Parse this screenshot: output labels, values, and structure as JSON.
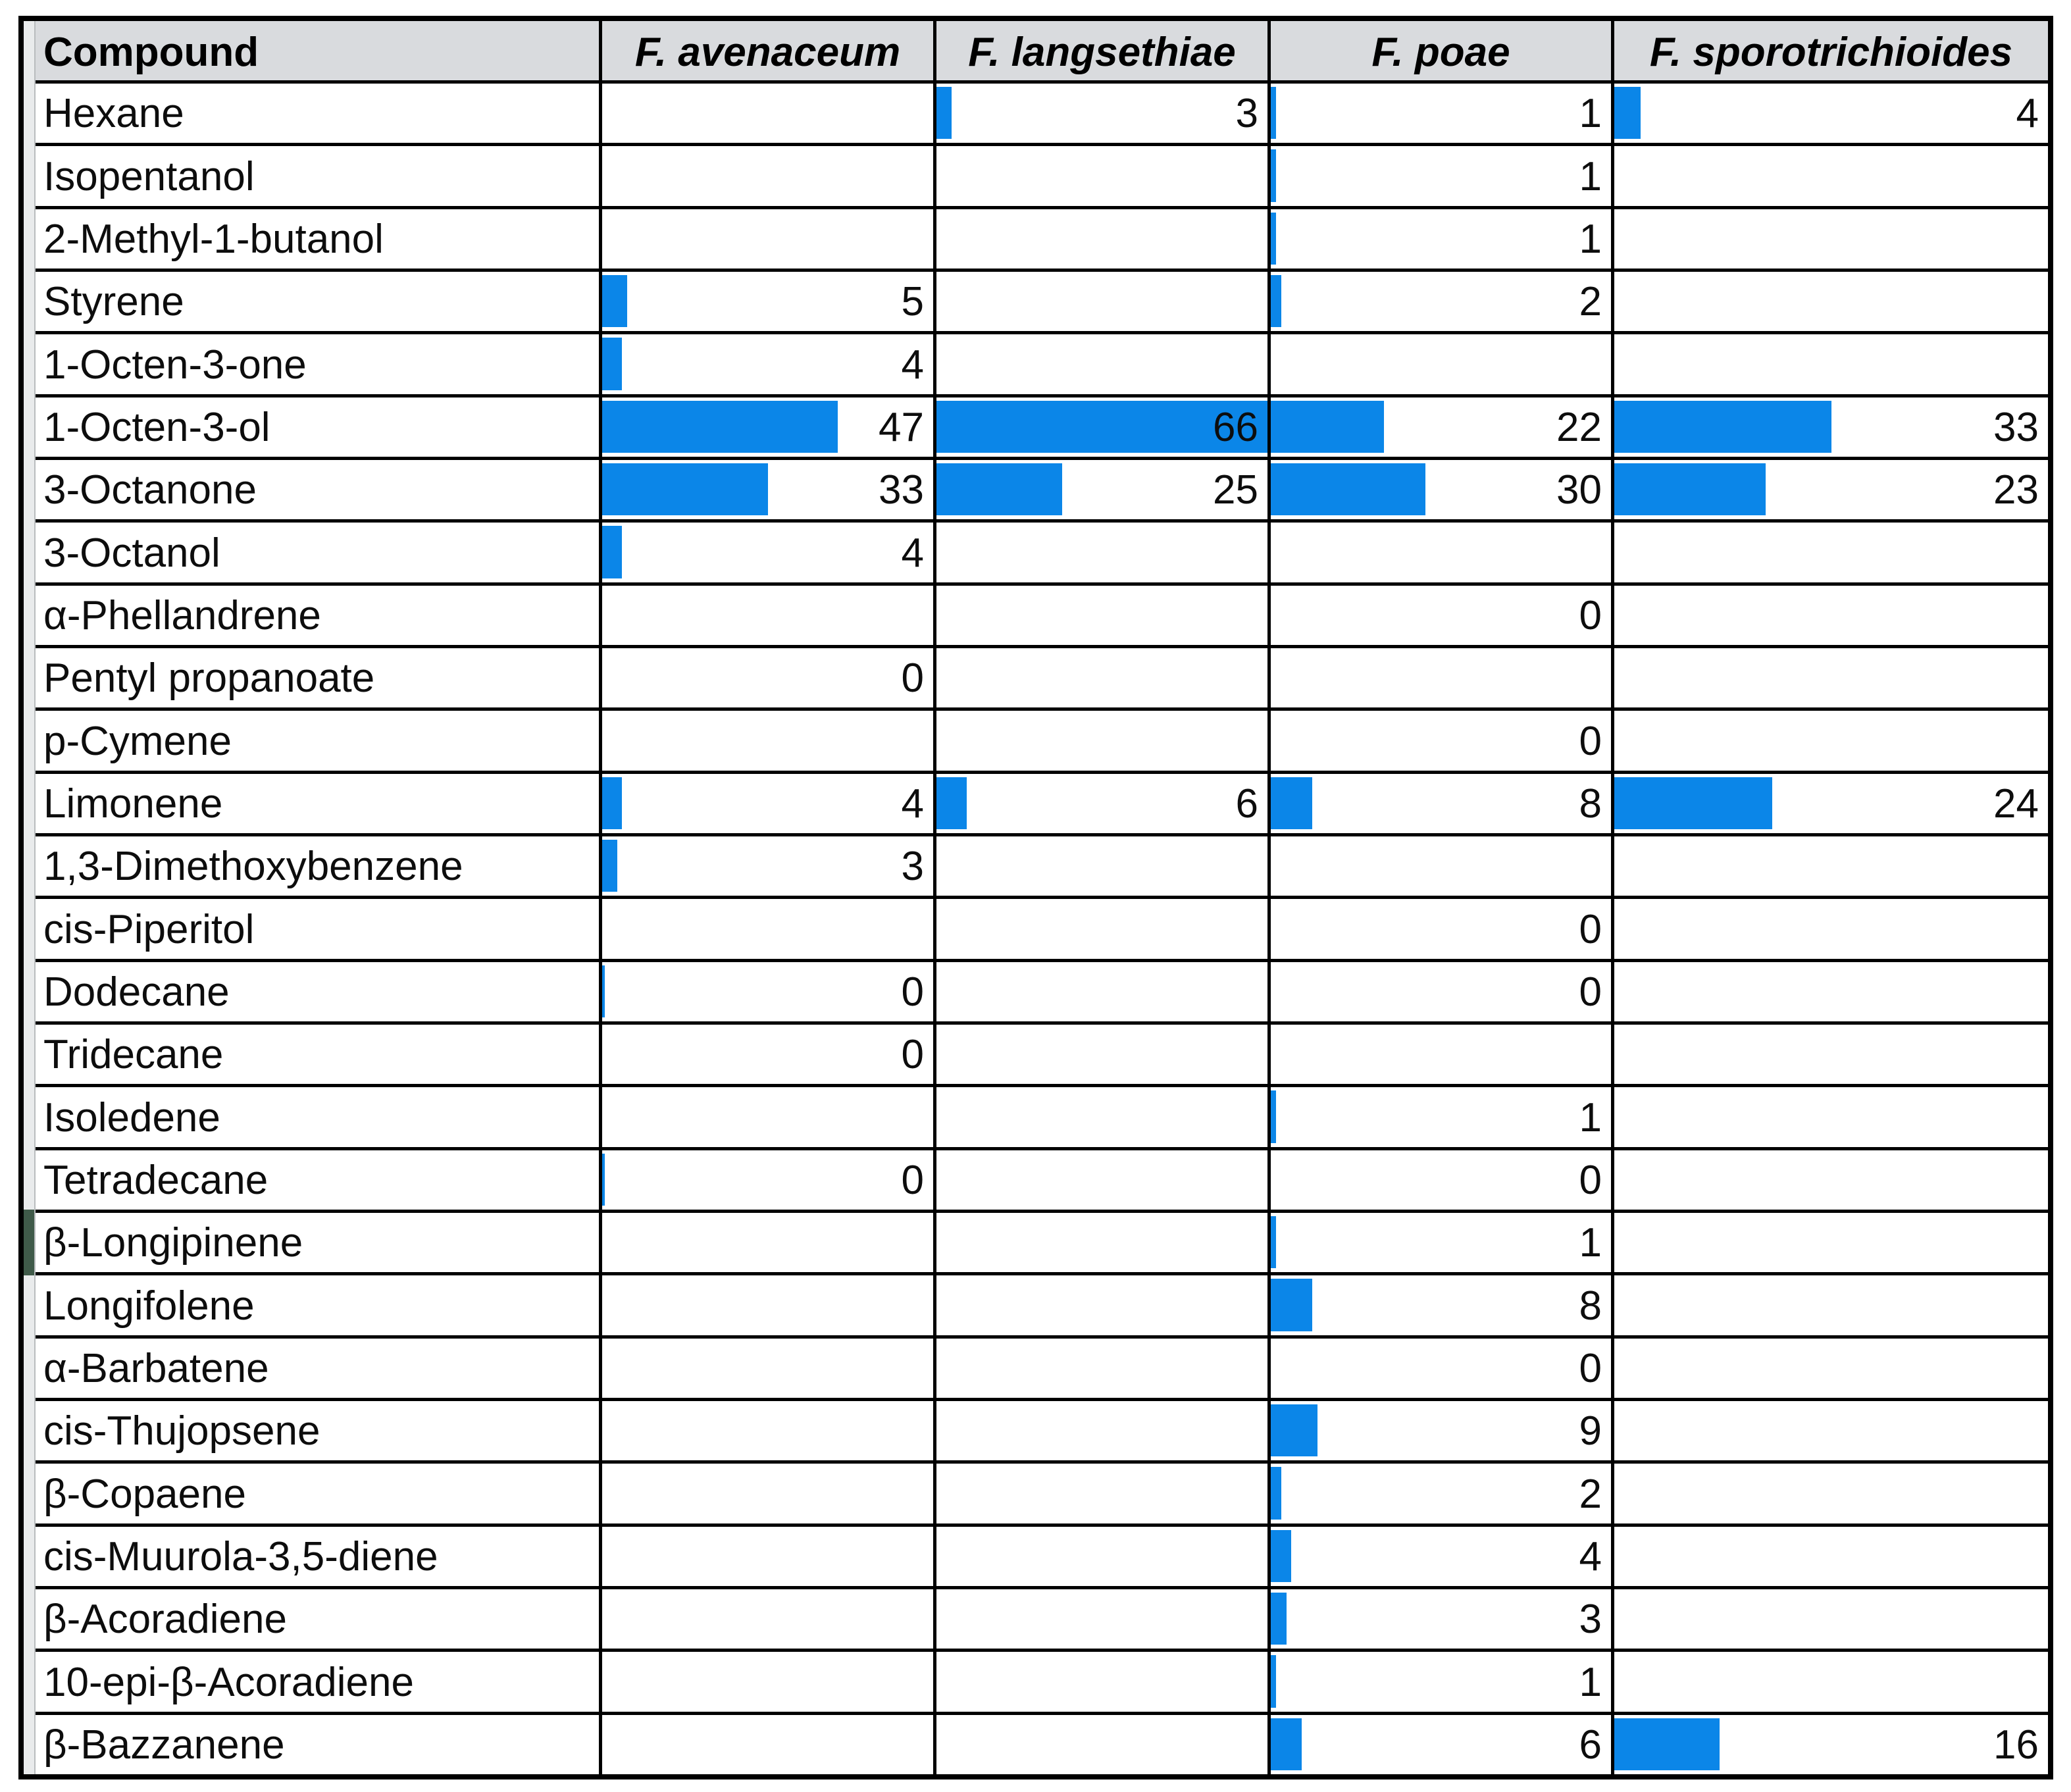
{
  "style": {
    "bar_color": "#0b86e8",
    "header_bg": "#d9dbde",
    "grid_color": "#000000",
    "text_color": "#0d0d0d",
    "left_strip_color": "#e9ebec",
    "left_strip_line_color": "#b9bcbe",
    "selection_marker_color": "#3f5a49"
  },
  "table": {
    "header": {
      "compound": "Compound",
      "species": [
        "F. avenaceum",
        "F. langsethiae",
        "F. poae",
        "F. sporotrichioides"
      ]
    }
  },
  "artifacts": {
    "selection_marker_row": "β-Longipinene",
    "zero_hairlines": [
      {
        "series": "F. avenaceum",
        "compound": "Dodecane"
      },
      {
        "series": "F. avenaceum",
        "compound": "Tetradecane"
      }
    ]
  },
  "chart_data": {
    "type": "table",
    "title": "",
    "bar_scale_max": 66,
    "bar_style": "excel-data-bars, left-anchored, scaled to global max",
    "categories": [
      "Hexane",
      "Isopentanol",
      "2-Methyl-1-butanol",
      "Styrene",
      "1-Octen-3-one",
      "1-Octen-3-ol",
      "3-Octanone",
      "3-Octanol",
      "α-Phellandrene",
      "Pentyl propanoate",
      "p-Cymene",
      "Limonene",
      "1,3-Dimethoxybenzene",
      "cis-Piperitol",
      "Dodecane",
      "Tridecane",
      "Isoledene",
      "Tetradecane",
      "β-Longipinene",
      "Longifolene",
      "α-Barbatene",
      "cis-Thujopsene",
      "β-Copaene",
      "cis-Muurola-3,5-diene",
      "β-Acoradiene",
      "10-epi-β-Acoradiene",
      "β-Bazzanene"
    ],
    "series": [
      {
        "name": "F. avenaceum",
        "values": [
          null,
          null,
          null,
          5,
          4,
          47,
          33,
          4,
          null,
          0,
          null,
          4,
          3,
          null,
          0,
          0,
          null,
          0,
          null,
          null,
          null,
          null,
          null,
          null,
          null,
          null,
          null
        ]
      },
      {
        "name": "F. langsethiae",
        "values": [
          3,
          null,
          null,
          null,
          null,
          66,
          25,
          null,
          null,
          null,
          null,
          6,
          null,
          null,
          null,
          null,
          null,
          null,
          null,
          null,
          null,
          null,
          null,
          null,
          null,
          null,
          null
        ]
      },
      {
        "name": "F. poae",
        "values": [
          1,
          1,
          1,
          2,
          null,
          22,
          30,
          null,
          0,
          null,
          0,
          8,
          null,
          0,
          0,
          null,
          1,
          0,
          1,
          8,
          0,
          9,
          2,
          4,
          3,
          1,
          6
        ]
      },
      {
        "name": "F. sporotrichioides",
        "values": [
          4,
          null,
          null,
          null,
          null,
          33,
          23,
          null,
          null,
          null,
          null,
          24,
          null,
          null,
          null,
          null,
          null,
          null,
          null,
          null,
          null,
          null,
          null,
          null,
          null,
          null,
          16
        ]
      }
    ]
  }
}
